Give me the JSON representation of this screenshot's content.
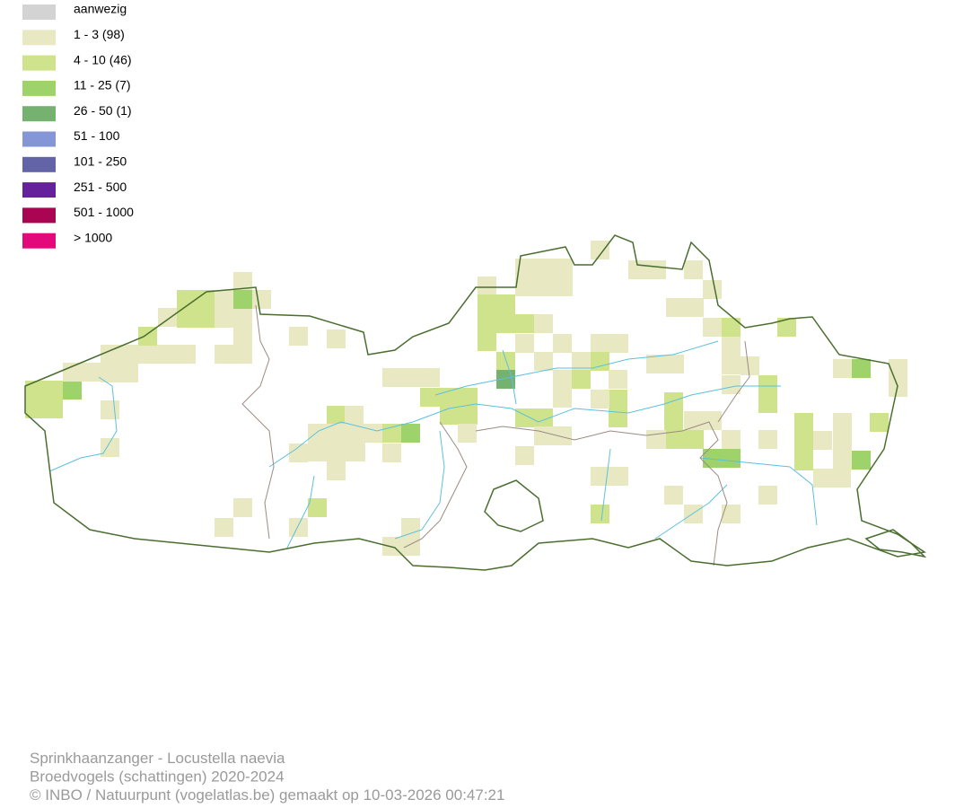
{
  "legend": [
    {
      "label": "aanwezig",
      "color": "#d3d3d3"
    },
    {
      "label": "1 - 3 (98)",
      "color": "#e8e9c3"
    },
    {
      "label": "4 - 10 (46)",
      "color": "#cfe38c"
    },
    {
      "label": "11 - 25 (7)",
      "color": "#9ed26a"
    },
    {
      "label": "26 - 50 (1)",
      "color": "#76b26f"
    },
    {
      "label": "51 - 100",
      "color": "#8496d6"
    },
    {
      "label": "101 - 250",
      "color": "#6364a8"
    },
    {
      "label": "251 - 500",
      "color": "#65219b"
    },
    {
      "label": "501 - 1000",
      "color": "#aa0552"
    },
    {
      "label": "> 1000",
      "color": "#e4097a"
    }
  ],
  "footer": [
    "Sprinkhaanzanger - Locustella naevia",
    "Broedvogels (schattingen) 2020-2024",
    "© INBO / Natuurpunt (vogelatlas.be) gemaakt op 10-03-2026 00:47:21"
  ]
}
